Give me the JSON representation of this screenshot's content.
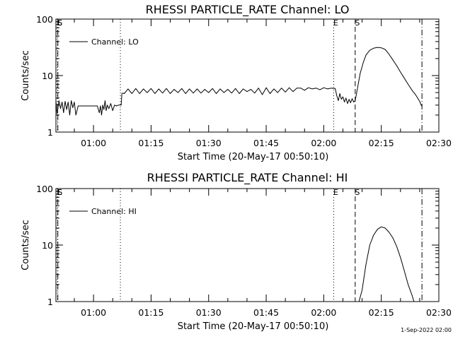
{
  "footer": {
    "timestamp": "1-Sep-2022 02:00"
  },
  "chart_data": [
    {
      "type": "line",
      "title": "RHESSI PARTICLE_RATE Channel: LO",
      "xlabel": "Start Time (20-May-17 00:50:10)",
      "ylabel": "Counts/sec",
      "x_tick_labels": [
        "01:00",
        "01:15",
        "01:30",
        "01:45",
        "02:00",
        "02:15",
        "02:30"
      ],
      "x_tick_minutes": [
        60,
        75,
        90,
        105,
        120,
        135,
        150
      ],
      "xlim_minutes": [
        50.2,
        150
      ],
      "y_tick_labels": [
        "1",
        "10",
        "100"
      ],
      "ylim": [
        1,
        100
      ],
      "yscale": "log",
      "grid": false,
      "legend_position": "top-left",
      "series": [
        {
          "name": "Channel: LO",
          "segments": [
            {
              "x": [
                50.2,
                50.5,
                51.0,
                51.4,
                51.8,
                52.2,
                52.6,
                53.0,
                53.4,
                53.8,
                54.2,
                54.6,
                55.0,
                55.4,
                56.0,
                57.0,
                58.0,
                59.0,
                60.0,
                61.0,
                61.5,
                61.8,
                62.1,
                62.4,
                62.7,
                63.0,
                63.3,
                63.6,
                64.0,
                64.5,
                65.0,
                65.5,
                66.0,
                66.5,
                67.2,
                67.4,
                67.6,
                68.0,
                69.0,
                70.0,
                71.0,
                72.0,
                73.0,
                74.0,
                75.0,
                76.0,
                77.0,
                78.0,
                79.0,
                80.0,
                81.0,
                82.0,
                83.0,
                84.0,
                85.0,
                86.0,
                87.0,
                88.0,
                89.0,
                90.0,
                91.0,
                92.0,
                93.0,
                94.0,
                95.0,
                96.0,
                97.0,
                98.0,
                99.0,
                100.0,
                101.0,
                102.0,
                103.0,
                104.0,
                105.0,
                106.0,
                107.0,
                108.0,
                109.0,
                110.0,
                111.0,
                112.0,
                113.0,
                114.0,
                115.0,
                116.0,
                117.0,
                118.0,
                119.0,
                120.0,
                121.0,
                122.0,
                122.5,
                123.0,
                123.4,
                123.8,
                124.2,
                124.6,
                125.0,
                125.4,
                125.8,
                126.2,
                126.6,
                127.0,
                127.4,
                127.8,
                128.2
              ],
              "y": [
                3.6,
                2.1,
                3.6,
                2.6,
                3.4,
                2.2,
                3.5,
                2.5,
                3.4,
                2.0,
                3.6,
                2.7,
                3.4,
                2.0,
                2.9,
                2.9,
                2.9,
                2.9,
                2.9,
                2.9,
                2.2,
                2.9,
                2.0,
                3.0,
                2.5,
                3.6,
                2.4,
                3.0,
                2.6,
                3.2,
                2.4,
                3.0,
                2.9,
                3.0,
                3.0,
                4.8,
                4.9,
                4.8,
                5.8,
                4.8,
                5.9,
                4.8,
                5.8,
                5.0,
                5.9,
                4.8,
                5.8,
                4.9,
                5.9,
                4.8,
                5.7,
                5.0,
                5.9,
                4.8,
                5.8,
                4.9,
                5.8,
                4.9,
                5.7,
                5.0,
                5.9,
                4.8,
                5.8,
                5.0,
                5.7,
                4.9,
                5.9,
                4.8,
                5.8,
                5.2,
                5.7,
                4.9,
                6.0,
                4.6,
                6.1,
                4.8,
                5.8,
                5.0,
                6.0,
                5.1,
                6.1,
                5.2,
                6.0,
                6.0,
                5.5,
                6.1,
                5.8,
                6.0,
                5.6,
                6.1,
                5.8,
                6.0,
                5.9,
                5.9,
                4.4,
                3.6,
                4.8,
                3.8,
                4.2,
                3.4,
                4.0,
                3.2,
                3.8,
                3.3,
                3.9,
                3.4,
                3.6
              ]
            },
            {
              "x": [
                128.2,
                128.8,
                129.5,
                130.3,
                131.0,
                132.0,
                133.0,
                134.0,
                135.0,
                136.0,
                137.0,
                138.0,
                139.0,
                140.0,
                141.0,
                142.0,
                143.0,
                144.0,
                145.0,
                145.4,
                145.5
              ],
              "y": [
                3.6,
                6.0,
                11.0,
                17.0,
                23.0,
                28.0,
                30.5,
                31.5,
                31.0,
                29.0,
                24.0,
                19.0,
                15.0,
                11.5,
                9.0,
                7.0,
                5.5,
                4.5,
                3.5,
                3.0,
                2.9
              ]
            }
          ]
        }
      ],
      "vertical_markers": [
        {
          "label": "S",
          "x": 50.7,
          "style": "dash-dot"
        },
        {
          "label": "E",
          "x": 50.6,
          "style": "dotted"
        },
        {
          "label": "",
          "x": 67.0,
          "style": "dotted"
        },
        {
          "label": "E",
          "x": 122.6,
          "style": "dotted"
        },
        {
          "label": "S",
          "x": 128.2,
          "style": "dashed"
        },
        {
          "label": "",
          "x": 145.6,
          "style": "dash-dot"
        }
      ]
    },
    {
      "type": "line",
      "title": "RHESSI PARTICLE_RATE Channel: HI",
      "xlabel": "Start Time (20-May-17 00:50:10)",
      "ylabel": "Counts/sec",
      "x_tick_labels": [
        "01:00",
        "01:15",
        "01:30",
        "01:45",
        "02:00",
        "02:15",
        "02:30"
      ],
      "x_tick_minutes": [
        60,
        75,
        90,
        105,
        120,
        135,
        150
      ],
      "xlim_minutes": [
        50.2,
        150
      ],
      "y_tick_labels": [
        "1",
        "10",
        "100"
      ],
      "ylim": [
        1,
        100
      ],
      "yscale": "log",
      "grid": false,
      "legend_position": "top-left",
      "series": [
        {
          "name": "Channel: HI",
          "segments": [
            {
              "x": [
                129.2,
                130.0,
                131.0,
                132.0,
                133.0,
                134.0,
                135.0,
                136.0,
                137.0,
                138.0,
                139.0,
                140.0,
                141.0,
                142.0,
                143.0,
                143.5
              ],
              "y": [
                1.0,
                1.6,
                4.5,
                10.0,
                15.0,
                19.0,
                21.0,
                20.0,
                17.0,
                13.5,
                9.5,
                6.0,
                3.5,
                2.0,
                1.3,
                1.0
              ]
            }
          ]
        }
      ],
      "vertical_markers": [
        {
          "label": "S",
          "x": 50.7,
          "style": "dash-dot"
        },
        {
          "label": "E",
          "x": 50.6,
          "style": "dotted"
        },
        {
          "label": "",
          "x": 67.0,
          "style": "dotted"
        },
        {
          "label": "E",
          "x": 122.6,
          "style": "dotted"
        },
        {
          "label": "S",
          "x": 128.2,
          "style": "dashed"
        },
        {
          "label": "",
          "x": 145.6,
          "style": "dash-dot"
        }
      ]
    }
  ]
}
